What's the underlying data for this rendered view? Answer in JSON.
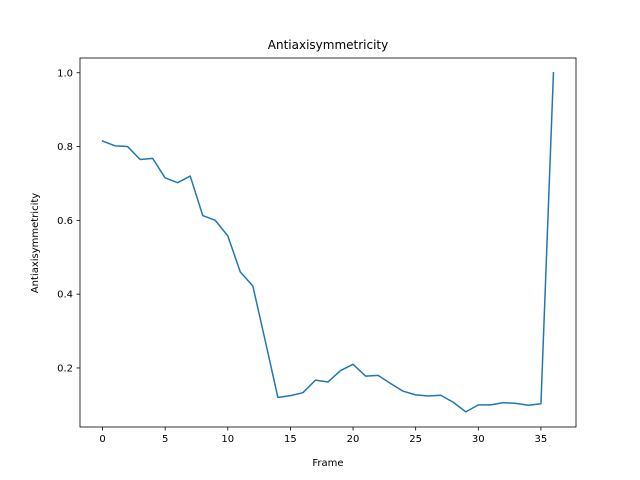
{
  "chart_data": {
    "type": "line",
    "title": "Antiaxisymmetricity",
    "xlabel": "Frame",
    "ylabel": "Antiaxisymmetricity",
    "xlim": [
      -1.8,
      37.8
    ],
    "ylim": [
      0.04,
      1.04
    ],
    "xticks": [
      0,
      5,
      10,
      15,
      20,
      25,
      30,
      35
    ],
    "yticks": [
      0.2,
      0.4,
      0.6,
      0.8,
      1.0
    ],
    "ytick_labels": [
      "0.2",
      "0.4",
      "0.6",
      "0.8",
      "1.0"
    ],
    "grid": false,
    "series": [
      {
        "color": "#1f77b4",
        "x": [
          0,
          1,
          2,
          3,
          4,
          5,
          6,
          7,
          8,
          9,
          10,
          11,
          12,
          13,
          14,
          15,
          16,
          17,
          18,
          19,
          20,
          21,
          22,
          23,
          24,
          25,
          26,
          27,
          28,
          29,
          30,
          31,
          32,
          33,
          34,
          35,
          36
        ],
        "y": [
          0.815,
          0.802,
          0.8,
          0.765,
          0.768,
          0.715,
          0.702,
          0.72,
          0.613,
          0.6,
          0.558,
          0.46,
          0.422,
          0.272,
          0.12,
          0.125,
          0.133,
          0.167,
          0.162,
          0.193,
          0.21,
          0.178,
          0.18,
          0.158,
          0.137,
          0.127,
          0.124,
          0.126,
          0.107,
          0.081,
          0.1,
          0.1,
          0.106,
          0.104,
          0.099,
          0.103,
          1.0
        ]
      }
    ]
  }
}
